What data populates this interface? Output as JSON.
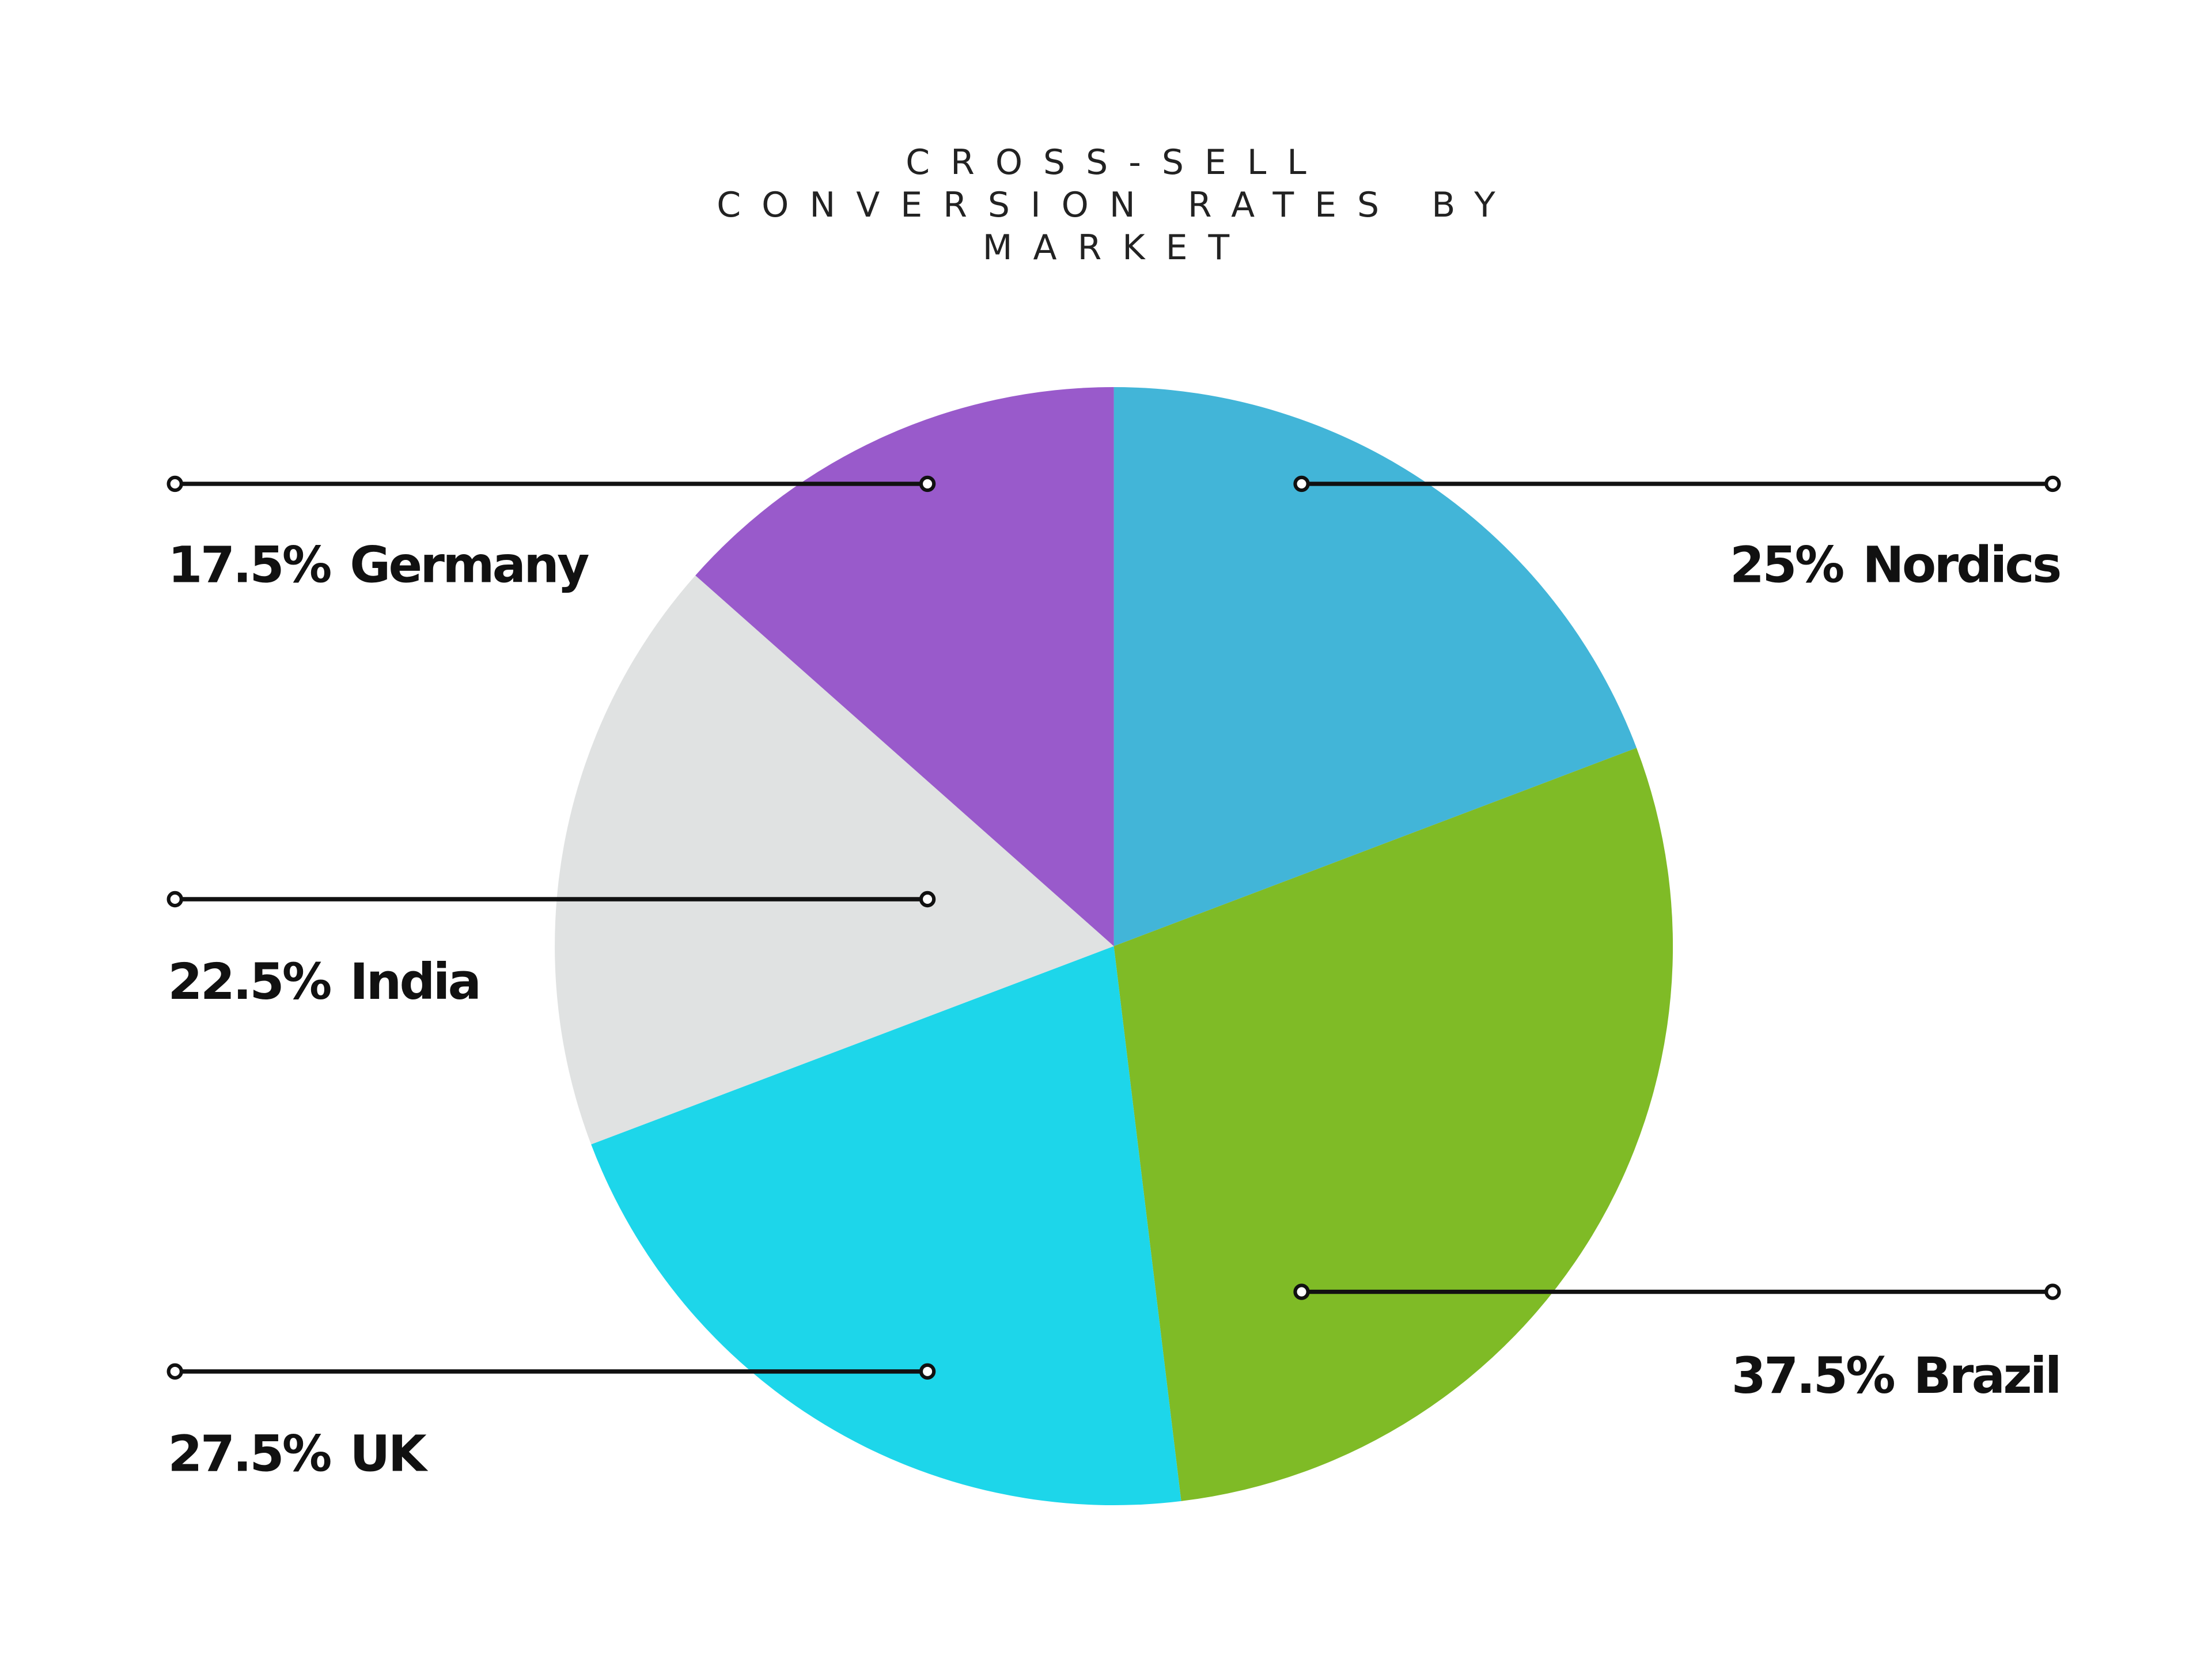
{
  "chart_data": {
    "type": "pie",
    "title": "CROSS-SELL CONVERSION RATES BY MARKET",
    "categories": [
      "Nordics",
      "Brazil",
      "UK",
      "India",
      "Germany"
    ],
    "values": [
      25,
      37.5,
      27.5,
      22.5,
      17.5
    ],
    "value_labels": [
      "25%",
      "37.5%",
      "27.5%",
      "22.5%",
      "17.5%"
    ],
    "colors": [
      "#42b5d8",
      "#7fbb26",
      "#1dd6ea",
      "#e0e2e2",
      "#995acb"
    ]
  }
}
